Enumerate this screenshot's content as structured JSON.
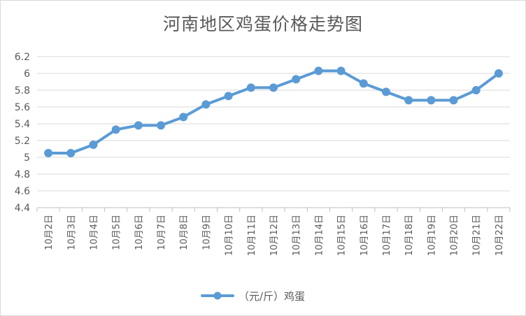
{
  "chart_data": {
    "type": "line",
    "title": "河南地区鸡蛋价格走势图",
    "categories": [
      "10月2日",
      "10月3日",
      "10月4日",
      "10月5日",
      "10月6日",
      "10月7日",
      "10月8日",
      "10月9日",
      "10月10日",
      "10月11日",
      "10月12日",
      "10月13日",
      "10月14日",
      "10月15日",
      "10月16日",
      "10月17日",
      "10月18日",
      "10月19日",
      "10月20日",
      "10月21日",
      "10月22日"
    ],
    "series": [
      {
        "name": "（元/斤）鸡蛋",
        "values": [
          5.05,
          5.05,
          5.15,
          5.33,
          5.38,
          5.38,
          5.48,
          5.63,
          5.73,
          5.83,
          5.83,
          5.93,
          6.03,
          6.03,
          5.88,
          5.78,
          5.68,
          5.68,
          5.68,
          5.8,
          6.0
        ],
        "color": "#5b9bd5"
      }
    ],
    "ylim": [
      4.4,
      6.2
    ],
    "yticks": [
      "4.4",
      "4.6",
      "4.8",
      "5",
      "5.2",
      "5.4",
      "5.6",
      "5.8",
      "6",
      "6.2"
    ],
    "xlabel": "",
    "ylabel": "",
    "grid": true,
    "legend_position": "bottom",
    "gridline_color": "#d9d9d9",
    "axis_color": "#bfbfbf"
  }
}
